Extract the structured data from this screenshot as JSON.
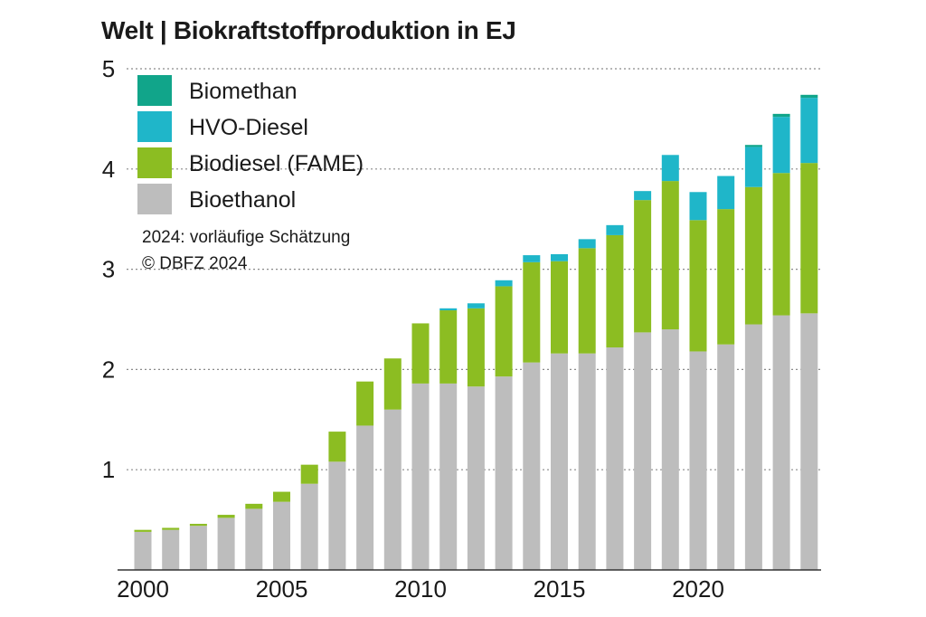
{
  "chart_data": {
    "type": "bar",
    "stacked": true,
    "title": "Welt | Biokraftstoffproduktion in EJ",
    "x": [
      2000,
      2001,
      2002,
      2003,
      2004,
      2005,
      2006,
      2007,
      2008,
      2009,
      2010,
      2011,
      2012,
      2013,
      2014,
      2015,
      2016,
      2017,
      2018,
      2019,
      2020,
      2021,
      2022,
      2023,
      2024
    ],
    "x_tick_labels": [
      "2000",
      "2005",
      "2010",
      "2015",
      "2020"
    ],
    "y_tick_labels": [
      "1",
      "2",
      "3",
      "4",
      "5"
    ],
    "ylim": [
      0,
      5
    ],
    "grid": true,
    "legend_position": "top-left",
    "series": [
      {
        "name": "Bioethanol",
        "color": "#bdbdbd",
        "values": [
          0.38,
          0.4,
          0.44,
          0.52,
          0.61,
          0.68,
          0.86,
          1.08,
          1.44,
          1.6,
          1.86,
          1.86,
          1.83,
          1.93,
          2.07,
          2.16,
          2.16,
          2.22,
          2.37,
          2.4,
          2.18,
          2.25,
          2.45,
          2.54,
          2.56
        ]
      },
      {
        "name": "Biodiesel (FAME)",
        "color": "#8cbd22",
        "values": [
          0.02,
          0.02,
          0.02,
          0.03,
          0.05,
          0.1,
          0.19,
          0.3,
          0.44,
          0.51,
          0.6,
          0.73,
          0.78,
          0.9,
          1.0,
          0.92,
          1.05,
          1.12,
          1.32,
          1.48,
          1.31,
          1.35,
          1.37,
          1.42,
          1.5
        ]
      },
      {
        "name": "HVO-Diesel",
        "color": "#1fb6c9",
        "values": [
          0,
          0,
          0,
          0,
          0,
          0,
          0,
          0,
          0,
          0,
          0,
          0.02,
          0.05,
          0.06,
          0.07,
          0.07,
          0.09,
          0.1,
          0.09,
          0.26,
          0.28,
          0.33,
          0.4,
          0.56,
          0.65
        ]
      },
      {
        "name": "Biomethan",
        "color": "#11a58a",
        "values": [
          0,
          0,
          0,
          0,
          0,
          0,
          0,
          0,
          0,
          0,
          0,
          0,
          0,
          0,
          0,
          0,
          0,
          0,
          0,
          0,
          0,
          0,
          0.02,
          0.03,
          0.03
        ]
      }
    ],
    "legend_order": [
      "Biomethan",
      "HVO-Diesel",
      "Biodiesel (FAME)",
      "Bioethanol"
    ],
    "notes": [
      "2024: vorläufige Schätzung",
      "© DBFZ 2024"
    ]
  }
}
